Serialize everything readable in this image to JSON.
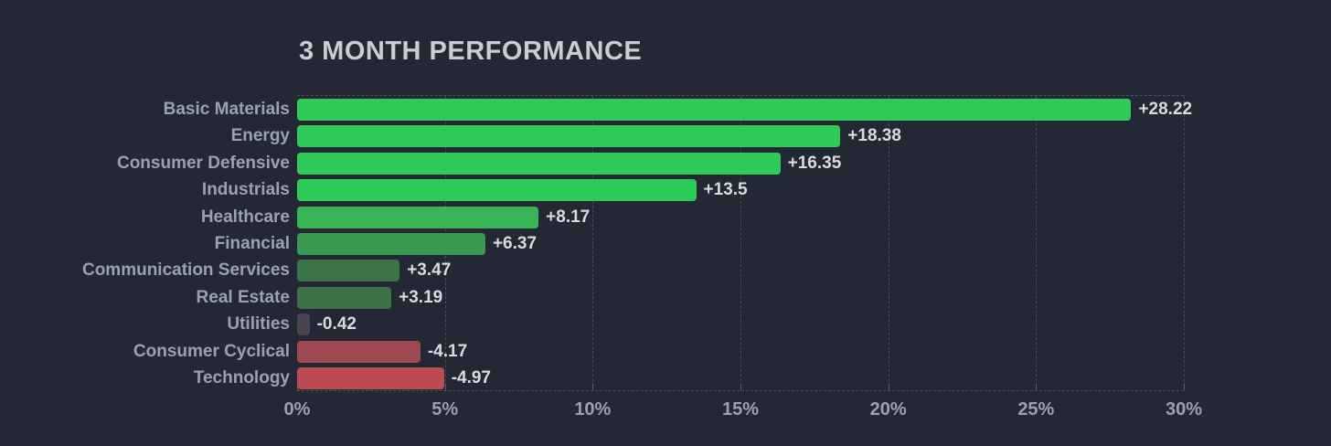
{
  "title": "3 MONTH PERFORMANCE",
  "colors": {
    "background": "#232834",
    "title": "#c9cdd6",
    "category_label": "#99a2b5",
    "value_label": "#d9dbe1",
    "axis_label": "#99a2b5",
    "gridline": "#454b59"
  },
  "chart_data": {
    "type": "bar",
    "orientation": "horizontal",
    "title": "3 MONTH PERFORMANCE",
    "xlabel": "",
    "ylabel": "",
    "xlim": [
      0,
      30
    ],
    "grid": "vertical dashed gridlines every 5%, dashed top and bottom plot borders",
    "legend": "none",
    "note": "negative values drawn rightward by magnitude in red; bar color encodes value",
    "x_ticks": [
      "0%",
      "5%",
      "10%",
      "15%",
      "20%",
      "25%",
      "30%"
    ],
    "x_tick_values": [
      0,
      5,
      10,
      15,
      20,
      25,
      30
    ],
    "categories": [
      "Basic Materials",
      "Energy",
      "Consumer Defensive",
      "Industrials",
      "Healthcare",
      "Financial",
      "Communication Services",
      "Real Estate",
      "Utilities",
      "Consumer Cyclical",
      "Technology"
    ],
    "values": [
      28.22,
      18.38,
      16.35,
      13.5,
      8.17,
      6.37,
      3.47,
      3.19,
      -0.42,
      -4.17,
      -4.97
    ],
    "value_labels": [
      "+28.22",
      "+18.38",
      "+16.35",
      "+13.5",
      "+8.17",
      "+6.37",
      "+3.47",
      "+3.19",
      "-0.42",
      "-4.17",
      "-4.97"
    ],
    "bar_colors": [
      "#2fcb58",
      "#2fcb58",
      "#2fcb58",
      "#2fcb58",
      "#38b556",
      "#3a9a51",
      "#3d7349",
      "#3d7148",
      "#4a4351",
      "#9f4a52",
      "#bd4b54"
    ]
  }
}
